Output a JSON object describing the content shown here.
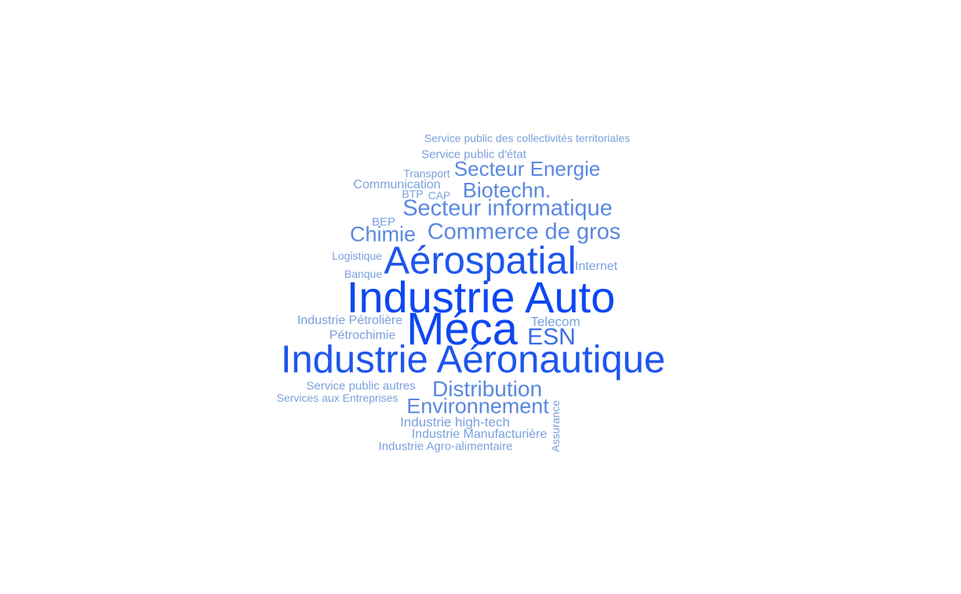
{
  "colors": {
    "darkest": "#0d47f2",
    "dark": "#1d56ef",
    "mid": "#3a6de6",
    "light": "#5a88e0",
    "lightest": "#7ba0dc"
  },
  "words": [
    {
      "text": "Service public des collectivités territoriales",
      "tone": "lightest"
    },
    {
      "text": "Service public d'état",
      "tone": "lightest"
    },
    {
      "text": "Transport",
      "tone": "lightest"
    },
    {
      "text": "Secteur Energie",
      "tone": "light"
    },
    {
      "text": "Communication",
      "tone": "lightest"
    },
    {
      "text": "BTP",
      "tone": "lightest"
    },
    {
      "text": "CAP",
      "tone": "lightest"
    },
    {
      "text": "Biotechn.",
      "tone": "light"
    },
    {
      "text": "Secteur informatique",
      "tone": "light"
    },
    {
      "text": "BEP",
      "tone": "lightest"
    },
    {
      "text": "Chimie",
      "tone": "light"
    },
    {
      "text": "Commerce de gros",
      "tone": "light"
    },
    {
      "text": "Logistique",
      "tone": "lightest"
    },
    {
      "text": "Aérospatial",
      "tone": "dark"
    },
    {
      "text": "Internet",
      "tone": "lightest"
    },
    {
      "text": "Banque",
      "tone": "lightest"
    },
    {
      "text": "Industrie Auto",
      "tone": "darkest"
    },
    {
      "text": "Industrie Pétrolière",
      "tone": "lightest"
    },
    {
      "text": "Méca",
      "tone": "darkest"
    },
    {
      "text": "Telecom",
      "tone": "lightest"
    },
    {
      "text": "Pétrochimie",
      "tone": "lightest"
    },
    {
      "text": "ESN",
      "tone": "mid"
    },
    {
      "text": "Industrie Aéronautique",
      "tone": "dark"
    },
    {
      "text": "Service public autres",
      "tone": "lightest"
    },
    {
      "text": "Distribution",
      "tone": "light"
    },
    {
      "text": "Services aux Entreprises",
      "tone": "lightest"
    },
    {
      "text": "Environnement",
      "tone": "light"
    },
    {
      "text": "Industrie high-tech",
      "tone": "lightest"
    },
    {
      "text": "Assurance",
      "tone": "lightest"
    },
    {
      "text": "Industrie Manufacturière",
      "tone": "lightest"
    },
    {
      "text": "Industrie Agro-alimentaire",
      "tone": "lightest"
    }
  ]
}
